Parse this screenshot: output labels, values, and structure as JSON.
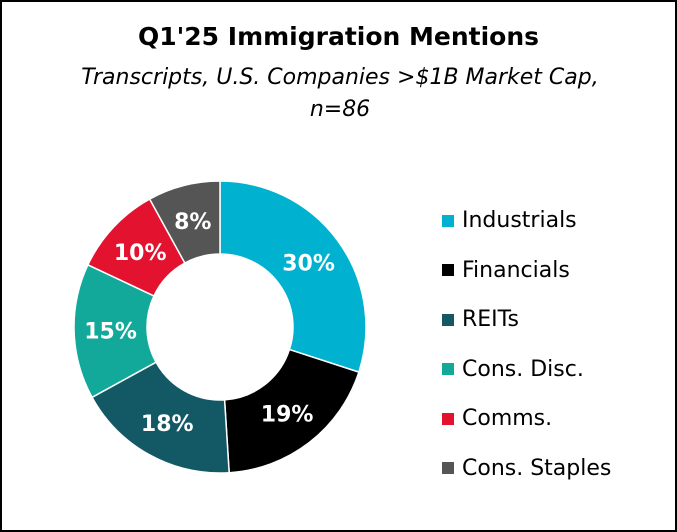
{
  "chart_data": {
    "type": "pie",
    "donut": true,
    "title": "Q1'25 Immigration Mentions",
    "subtitle": "Transcripts, U.S. Companies >$1B Market Cap, n=86",
    "categories": [
      "Industrials",
      "Financials",
      "REITs",
      "Cons. Disc.",
      "Comms.",
      "Cons. Staples"
    ],
    "values": [
      30,
      19,
      18,
      15,
      10,
      8
    ],
    "labels": [
      "30%",
      "19%",
      "18%",
      "15%",
      "10%",
      "8%"
    ],
    "colors": [
      "#00b2cf",
      "#000000",
      "#135965",
      "#12a99b",
      "#e3122f",
      "#555555"
    ],
    "legend_position": "right"
  }
}
